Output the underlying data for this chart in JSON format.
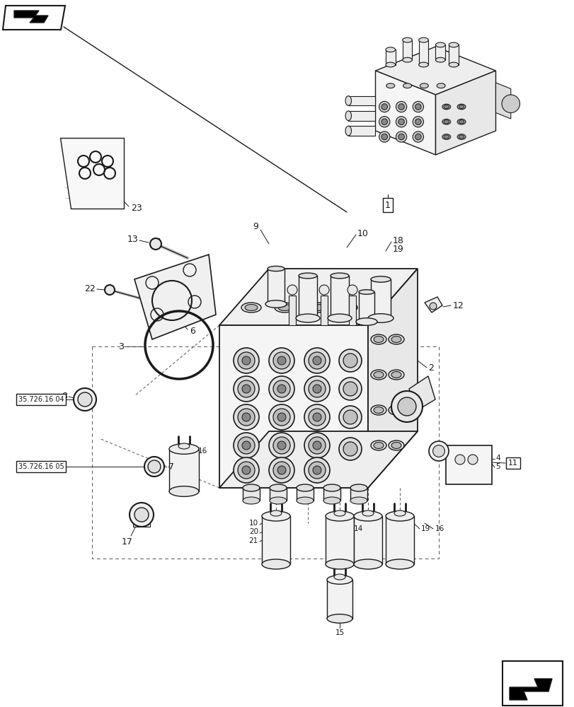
{
  "bg_color": "#ffffff",
  "fig_width": 8.12,
  "fig_height": 10.0,
  "dpi": 100,
  "lc": "#1a1a1a",
  "tc": "#1a1a1a",
  "label_fs": 9,
  "small_fs": 7.5
}
